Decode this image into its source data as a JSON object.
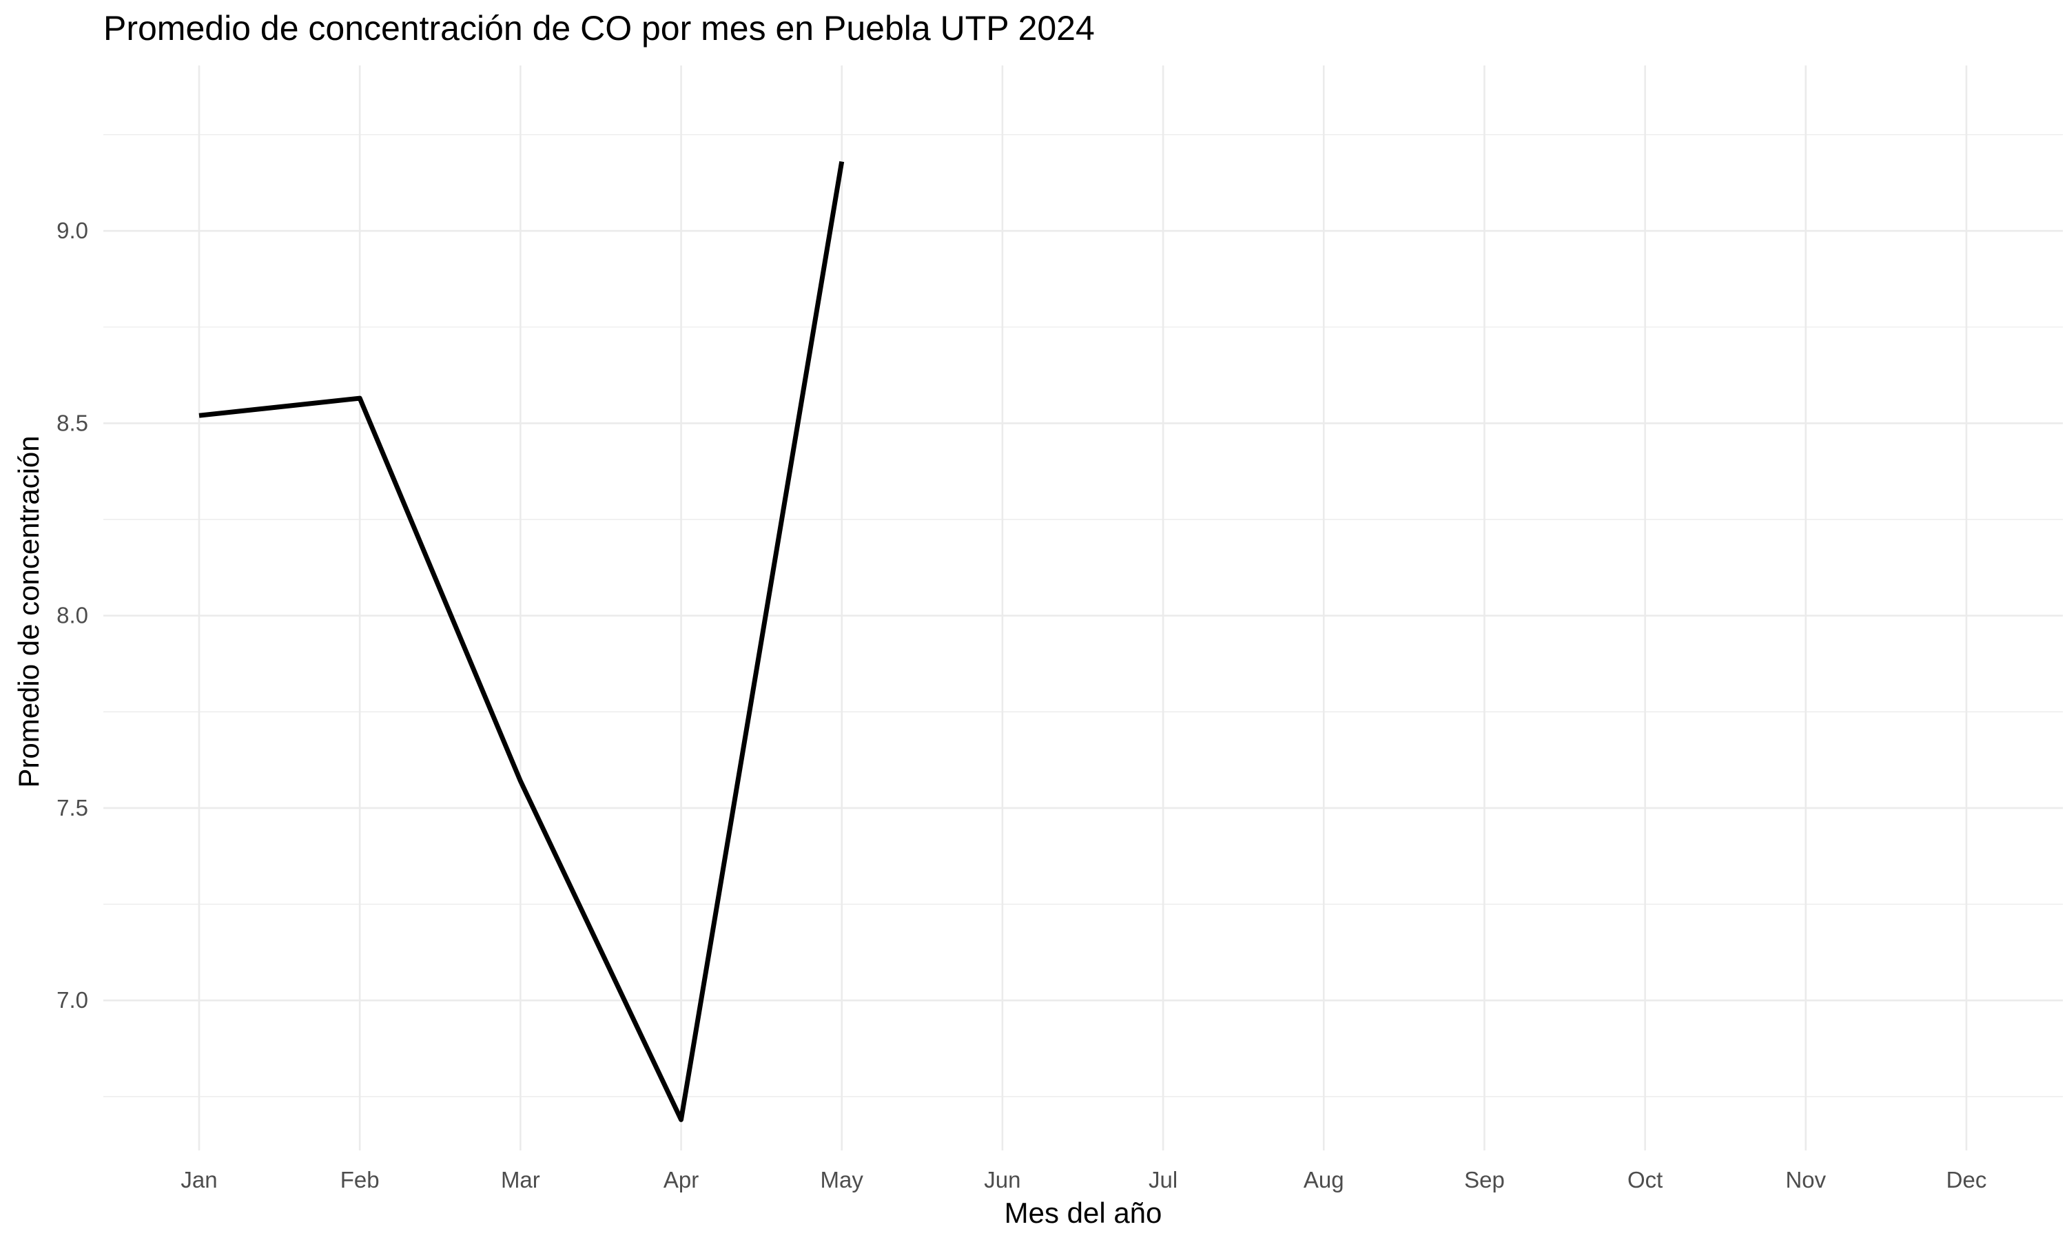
{
  "chart_data": {
    "type": "line",
    "title": "Promedio de concentración de CO por mes en Puebla UTP 2024",
    "xlabel": "Mes del año",
    "ylabel": "Promedio de concentración",
    "categories": [
      "Jan",
      "Feb",
      "Mar",
      "Apr",
      "May",
      "Jun",
      "Jul",
      "Aug",
      "Sep",
      "Oct",
      "Nov",
      "Dec"
    ],
    "series": [
      {
        "values": [
          8.52,
          8.565,
          7.57,
          6.69,
          9.18,
          null,
          null,
          null,
          null,
          null,
          null,
          null
        ],
        "color": "#000000"
      }
    ],
    "yticks": [
      7.0,
      7.5,
      8.0,
      8.5,
      9.0
    ],
    "ytick_labels": [
      "7.0",
      "7.5",
      "8.0",
      "8.5",
      "9.0"
    ],
    "ylim": [
      6.61,
      9.43
    ],
    "grid": true,
    "legend": "none"
  }
}
